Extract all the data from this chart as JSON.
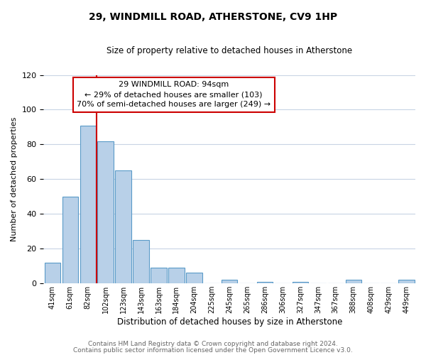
{
  "title": "29, WINDMILL ROAD, ATHERSTONE, CV9 1HP",
  "subtitle": "Size of property relative to detached houses in Atherstone",
  "xlabel": "Distribution of detached houses by size in Atherstone",
  "ylabel": "Number of detached properties",
  "bar_labels": [
    "41sqm",
    "61sqm",
    "82sqm",
    "102sqm",
    "123sqm",
    "143sqm",
    "163sqm",
    "184sqm",
    "204sqm",
    "225sqm",
    "245sqm",
    "265sqm",
    "286sqm",
    "306sqm",
    "327sqm",
    "347sqm",
    "367sqm",
    "388sqm",
    "408sqm",
    "429sqm",
    "449sqm"
  ],
  "bar_values": [
    12,
    50,
    91,
    82,
    65,
    25,
    9,
    9,
    6,
    0,
    2,
    0,
    1,
    0,
    1,
    0,
    0,
    2,
    0,
    0,
    2
  ],
  "bar_color": "#b8d0e8",
  "bar_edge_color": "#5a9ac8",
  "ylim": [
    0,
    120
  ],
  "yticks": [
    0,
    20,
    40,
    60,
    80,
    100,
    120
  ],
  "property_line_label": "29 WINDMILL ROAD: 94sqm",
  "annotation_line1": "← 29% of detached houses are smaller (103)",
  "annotation_line2": "70% of semi-detached houses are larger (249) →",
  "annotation_box_color": "#ffffff",
  "annotation_box_edge_color": "#cc0000",
  "vline_color": "#cc0000",
  "footer1": "Contains HM Land Registry data © Crown copyright and database right 2024.",
  "footer2": "Contains public sector information licensed under the Open Government Licence v3.0.",
  "background_color": "#ffffff",
  "grid_color": "#c8d4e4"
}
